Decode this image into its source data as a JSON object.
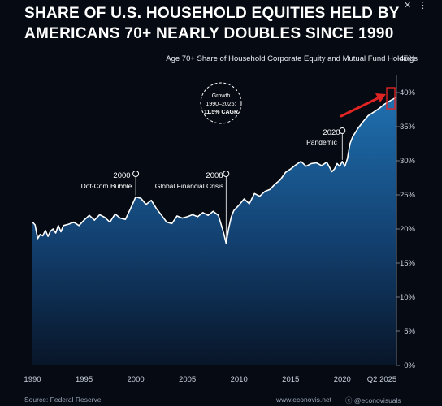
{
  "title_lines": [
    "SHARE OF U.S. HOUSEHOLD EQUITIES HELD BY",
    "AMERICANS 70+ NEARLY DOUBLES SINCE 1990"
  ],
  "subtitle": "Age 70+ Share of Household Corporate Equity and Mutual Fund Holdings",
  "source": "Source: Federal Reserve",
  "website": "www.econovis.net",
  "social": "@econovisuals",
  "growth_callout": {
    "line1": "Growth",
    "line2": "1990–2025:",
    "line3": "11.5% CAGR"
  },
  "annotations": [
    {
      "year": "2000",
      "label": "Dot-Com Bubble"
    },
    {
      "year": "2008",
      "label": "Global Financial Crisis"
    },
    {
      "year": "2020",
      "label": "Pandemic"
    }
  ],
  "colors": {
    "background": "#060a12",
    "area_top": "#1d6aa8",
    "area_bottom": "#0a1a30",
    "line": "#ffffff",
    "highlight": "#e02424"
  },
  "icons": [
    "close-icon",
    "info-icon",
    "x-logo-icon"
  ],
  "chart_data": {
    "type": "area",
    "title": "SHARE OF U.S. HOUSEHOLD EQUITIES HELD BY AMERICANS 70+ NEARLY DOUBLES SINCE 1990",
    "subtitle": "Age 70+ Share of Household Corporate Equity and Mutual Fund Holdings",
    "xlabel": "",
    "ylabel": "",
    "xlim": [
      1990,
      2025.25
    ],
    "ylim": [
      0,
      45
    ],
    "y_axis_position": "right",
    "x_ticks": [
      1990,
      1995,
      2000,
      2005,
      2010,
      2015,
      2020
    ],
    "x_tick_labels": [
      "1990",
      "1995",
      "2000",
      "2005",
      "2010",
      "2015",
      "2020"
    ],
    "end_tick_label": "Q2 2025",
    "y_ticks": [
      0,
      5,
      10,
      15,
      20,
      25,
      30,
      35,
      40,
      45
    ],
    "y_tick_labels": [
      "0%",
      "5%",
      "10%",
      "15%",
      "20%",
      "25%",
      "30%",
      "35%",
      "40%",
      "45%"
    ],
    "grid": false,
    "series": [
      {
        "x": [
          1990,
          1990.25,
          1990.5,
          1990.75,
          1991,
          1991.25,
          1991.5,
          1991.75,
          1992,
          1992.25,
          1992.5,
          1992.75,
          1993,
          1993.5,
          1994,
          1994.5,
          1995,
          1995.5,
          1996,
          1996.5,
          1997,
          1997.5,
          1998,
          1998.5,
          1999,
          1999.5,
          2000,
          2000.5,
          2001,
          2001.5,
          2002,
          2002.5,
          2003,
          2003.5,
          2004,
          2004.5,
          2005,
          2005.5,
          2006,
          2006.5,
          2007,
          2007.5,
          2008,
          2008.5,
          2008.75,
          2009,
          2009.25,
          2009.5,
          2010,
          2010.5,
          2011,
          2011.5,
          2012,
          2012.5,
          2013,
          2013.5,
          2014,
          2014.5,
          2015,
          2015.5,
          2016,
          2016.5,
          2017,
          2017.5,
          2018,
          2018.5,
          2019,
          2019.25,
          2019.5,
          2019.75,
          2020,
          2020.25,
          2020.5,
          2020.75,
          2021,
          2021.5,
          2022,
          2022.5,
          2023,
          2023.5,
          2024,
          2024.5,
          2025,
          2025.25
        ],
        "y": [
          21.0,
          20.6,
          18.6,
          19.2,
          19.0,
          19.8,
          18.9,
          19.7,
          20.0,
          19.4,
          20.5,
          19.6,
          20.5,
          20.7,
          21.0,
          20.5,
          21.3,
          22.0,
          21.3,
          22.1,
          21.7,
          21.0,
          22.2,
          21.6,
          21.4,
          23.0,
          24.7,
          24.5,
          23.6,
          24.2,
          23.0,
          22.0,
          21.0,
          20.8,
          21.9,
          21.6,
          21.8,
          22.1,
          21.8,
          22.4,
          22.0,
          22.6,
          22.0,
          19.5,
          17.9,
          20.1,
          21.8,
          22.7,
          23.5,
          24.4,
          23.7,
          25.2,
          24.8,
          25.5,
          25.8,
          26.6,
          27.2,
          28.3,
          28.8,
          29.4,
          29.9,
          29.2,
          29.6,
          29.7,
          29.3,
          29.8,
          28.4,
          28.8,
          29.6,
          29.2,
          29.9,
          29.2,
          30.3,
          32.5,
          33.5,
          34.7,
          35.7,
          36.6,
          37.1,
          37.6,
          38.2,
          38.7,
          39.1,
          39.4
        ]
      }
    ],
    "annotations": [
      {
        "x": 2000,
        "y": 24.7,
        "year": "2000",
        "label": "Dot-Com Bubble"
      },
      {
        "x": 2008.75,
        "y": 17.9,
        "year": "2008",
        "label": "Global Financial Crisis"
      },
      {
        "x": 2020,
        "y": 29.9,
        "year": "2020",
        "label": "Pandemic"
      }
    ],
    "callout": "Growth 1990–2025: 11.5% CAGR"
  }
}
